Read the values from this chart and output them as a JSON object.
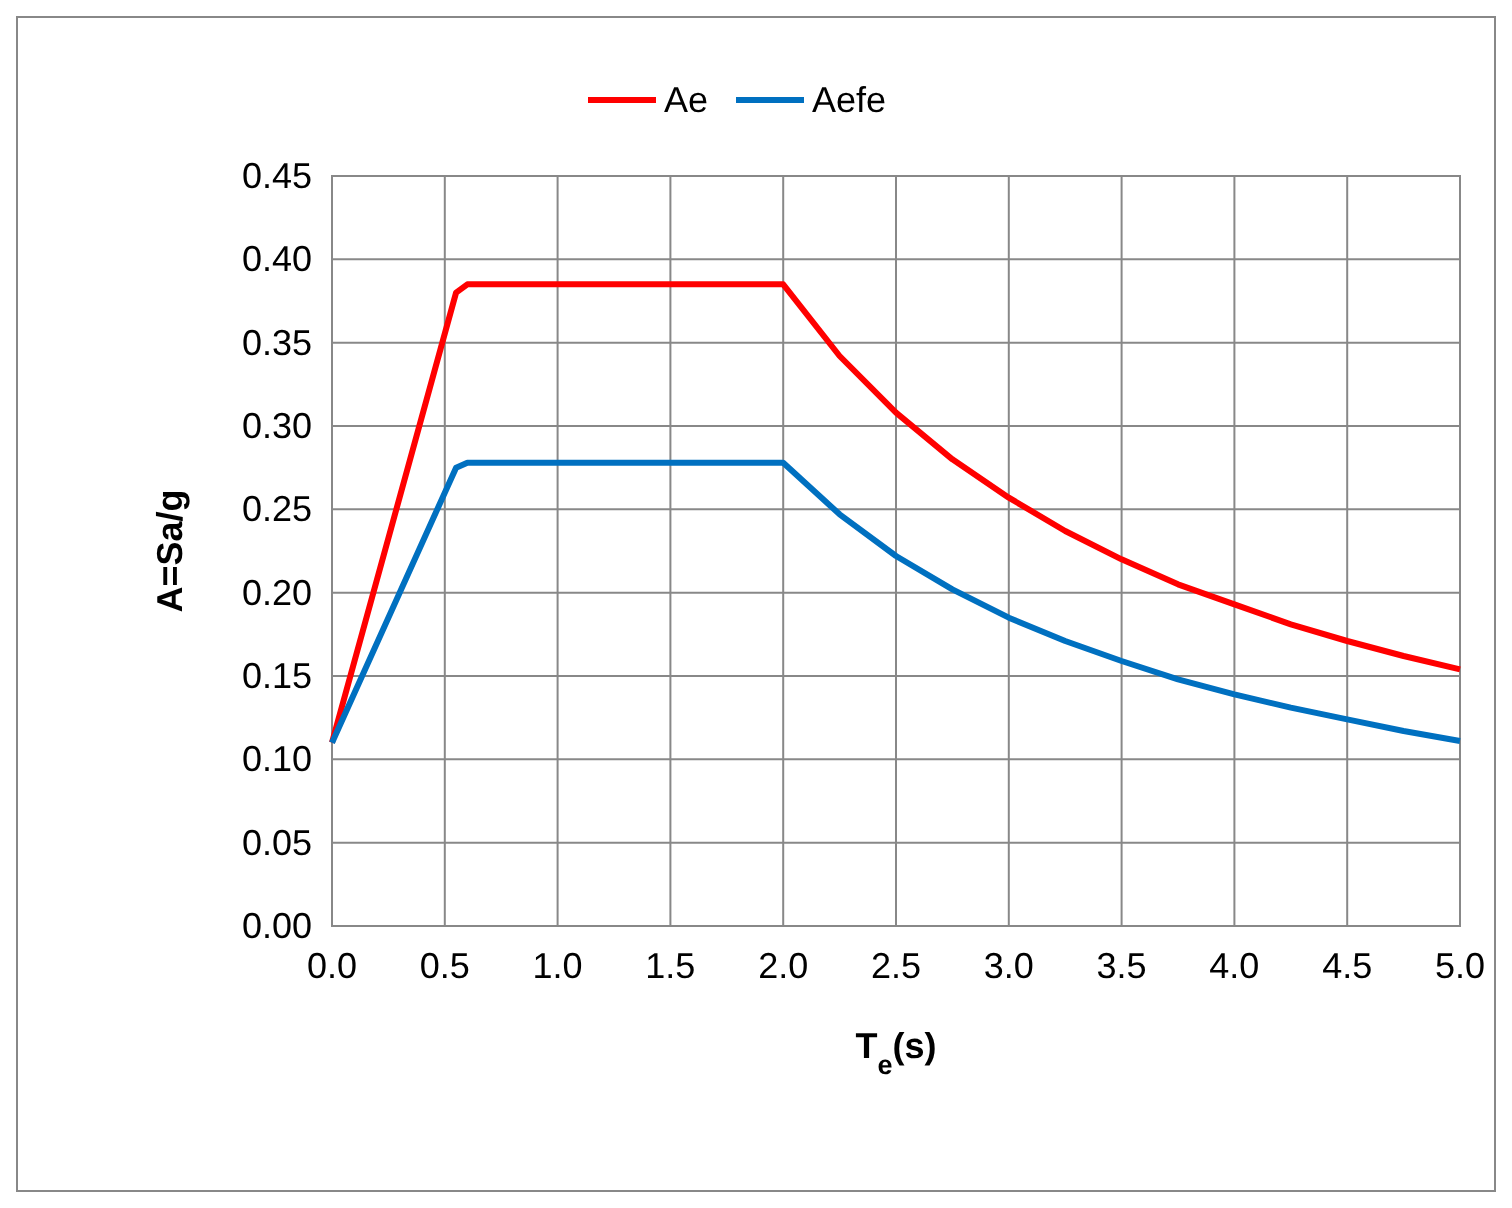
{
  "chart_data": {
    "type": "line",
    "xlabel": "T$_{e}$(s)",
    "ylabel": "A=Sa/g",
    "xlim": [
      0,
      5
    ],
    "ylim": [
      0,
      0.45
    ],
    "xticks": [
      {
        "value": 0,
        "label": "0.0"
      },
      {
        "value": 0.5,
        "label": "0.5"
      },
      {
        "value": 1,
        "label": "1.0"
      },
      {
        "value": 1.5,
        "label": "1.5"
      },
      {
        "value": 2,
        "label": "2.0"
      },
      {
        "value": 2.5,
        "label": "2.5"
      },
      {
        "value": 3,
        "label": "3.0"
      },
      {
        "value": 3.5,
        "label": "3.5"
      },
      {
        "value": 4,
        "label": "4.0"
      },
      {
        "value": 4.5,
        "label": "4.5"
      },
      {
        "value": 5,
        "label": "5.0"
      }
    ],
    "yticks": [
      {
        "value": 0,
        "label": "0.00"
      },
      {
        "value": 0.05,
        "label": "0.05"
      },
      {
        "value": 0.1,
        "label": "0.10"
      },
      {
        "value": 0.15,
        "label": "0.15"
      },
      {
        "value": 0.2,
        "label": "0.20"
      },
      {
        "value": 0.25,
        "label": "0.25"
      },
      {
        "value": 0.3,
        "label": "0.30"
      },
      {
        "value": 0.35,
        "label": "0.35"
      },
      {
        "value": 0.4,
        "label": "0.40"
      },
      {
        "value": 0.45,
        "label": "0.45"
      }
    ],
    "x": [
      0,
      0.55,
      0.6,
      2,
      2.25,
      2.5,
      2.75,
      3,
      3.25,
      3.5,
      3.75,
      4,
      4.25,
      4.5,
      4.75,
      5
    ],
    "series": [
      {
        "name": "Ae",
        "color": "#ff0000",
        "values": [
          0.11,
          0.38,
          0.385,
          0.385,
          0.342,
          0.308,
          0.28,
          0.257,
          0.237,
          0.22,
          0.205,
          0.193,
          0.181,
          0.171,
          0.162,
          0.154
        ]
      },
      {
        "name": "Aefe",
        "color": "#0070c0",
        "values": [
          0.11,
          0.275,
          0.278,
          0.278,
          0.247,
          0.222,
          0.202,
          0.185,
          0.171,
          0.159,
          0.148,
          0.139,
          0.131,
          0.124,
          0.117,
          0.111
        ]
      }
    ],
    "grid": true,
    "legend": "top",
    "marker": "none",
    "line_style": "solid"
  }
}
